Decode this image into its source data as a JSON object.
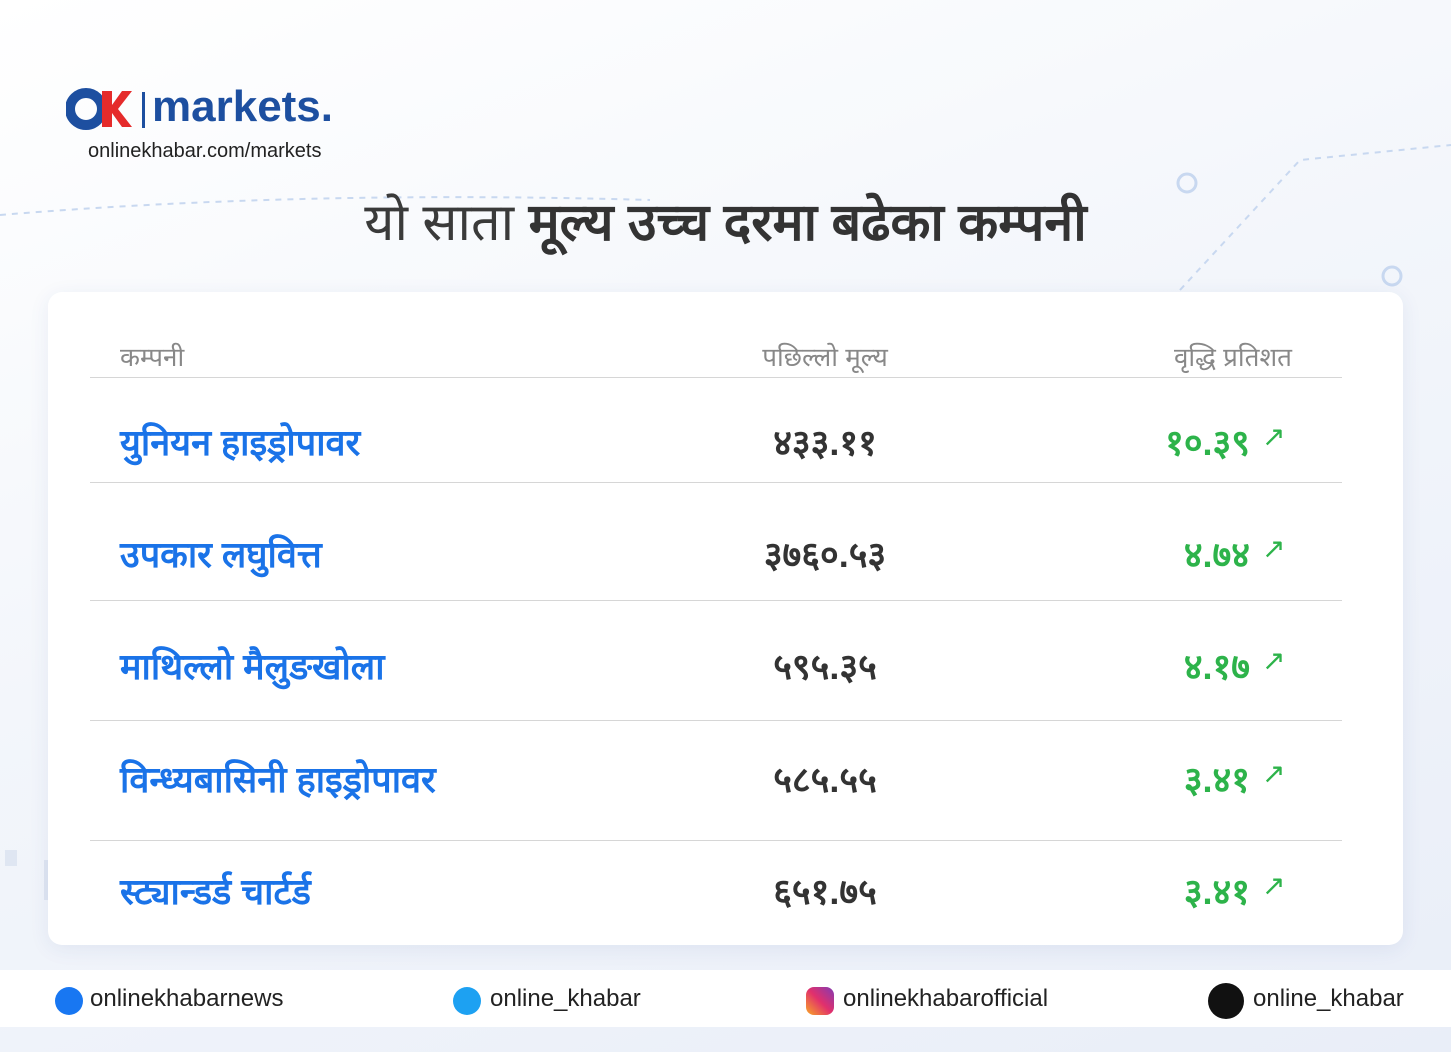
{
  "header": {
    "logo_text": "markets.",
    "url": "onlinekhabar.com/markets"
  },
  "title": {
    "light": "यो साता",
    "bold": "मूल्य उच्च दरमा बढेका कम्पनी"
  },
  "table": {
    "headers": [
      "कम्पनी",
      "पछिल्लो मूल्य",
      "वृद्धि प्रतिशत"
    ],
    "rows": [
      [
        "युनियन हाइड्रोपावर",
        "४३३.११",
        "१०.३९"
      ],
      [
        "उपकार लघुवित्त",
        "३७६०.५३",
        "४.७४"
      ],
      [
        "माथिल्लो मैलुङखोला",
        "५९५.३५",
        "४.१७"
      ],
      [
        "विन्ध्यबासिनी हाइड्रोपावर",
        "५८५.५५",
        "३.४१"
      ],
      [
        "स्ट्यान्डर्ड चार्टर्ड",
        "६५१.७५",
        "३.४१"
      ]
    ]
  },
  "footer": {
    "facebook": "onlinekhabarnews",
    "twitter": "online_khabar",
    "instagram": "onlinekhabarofficial",
    "tiktok": "online_khabar"
  }
}
